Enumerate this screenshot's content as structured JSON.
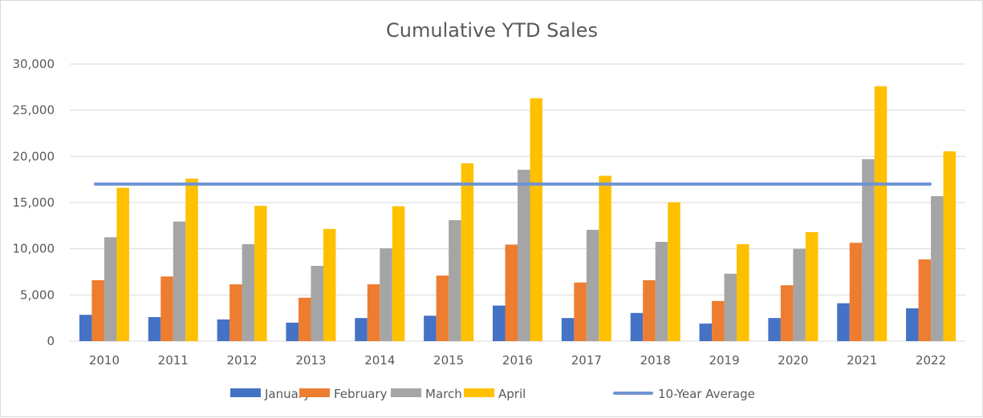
{
  "chart_data": {
    "type": "bar",
    "title": "Cumulative YTD Sales",
    "xlabel": "",
    "ylabel": "",
    "ylim": [
      0,
      30000
    ],
    "yticks": [
      "0",
      "5,000",
      "10,000",
      "15,000",
      "20,000",
      "25,000",
      "30,000"
    ],
    "grid": true,
    "legend_position": "bottom",
    "categories": [
      "2010",
      "2011",
      "2012",
      "2013",
      "2014",
      "2015",
      "2016",
      "2017",
      "2018",
      "2019",
      "2020",
      "2021",
      "2022"
    ],
    "series": [
      {
        "name": "January",
        "color": "#4472c4",
        "values": [
          2850,
          2600,
          2350,
          2000,
          2500,
          2750,
          3850,
          2500,
          3050,
          1900,
          2500,
          4100,
          3550
        ]
      },
      {
        "name": "February",
        "color": "#ed7d31",
        "values": [
          6600,
          7000,
          6150,
          4700,
          6150,
          7100,
          10450,
          6350,
          6600,
          4350,
          6050,
          10650,
          8850
        ]
      },
      {
        "name": "March",
        "color": "#a5a5a5",
        "values": [
          11250,
          12950,
          10500,
          8150,
          10050,
          13100,
          18550,
          12050,
          10750,
          7300,
          10000,
          19700,
          15700
        ]
      },
      {
        "name": "April",
        "color": "#ffc000",
        "values": [
          16600,
          17600,
          14650,
          12150,
          14600,
          19250,
          26300,
          17900,
          15050,
          10500,
          11800,
          27600,
          20550
        ]
      }
    ],
    "reference_line": {
      "name": "10-Year Average",
      "color": "#7094d1",
      "value": 17000,
      "type": "line"
    }
  }
}
